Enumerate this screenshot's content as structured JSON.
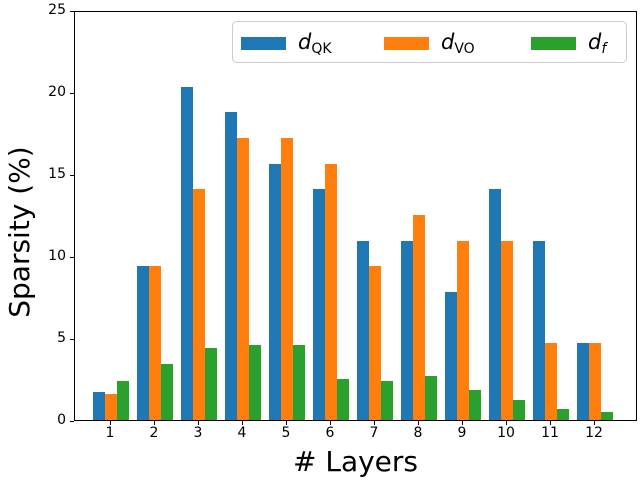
{
  "chart_data": {
    "type": "bar",
    "title": "",
    "xlabel": "# Layers",
    "ylabel": "Sparsity (%)",
    "categories": [
      "1",
      "2",
      "3",
      "4",
      "5",
      "6",
      "7",
      "8",
      "9",
      "10",
      "11",
      "12"
    ],
    "series": [
      {
        "name": "d_QK",
        "label_main": "d",
        "label_sub": "QK",
        "sub_italic": false,
        "color": "#1f77b4",
        "values": [
          1.7,
          9.4,
          20.3,
          18.8,
          15.6,
          14.1,
          10.9,
          10.9,
          7.8,
          14.1,
          10.9,
          4.7
        ]
      },
      {
        "name": "d_VO",
        "label_main": "d",
        "label_sub": "VO",
        "sub_italic": false,
        "color": "#ff7f0e",
        "values": [
          1.6,
          9.4,
          14.1,
          17.2,
          17.2,
          15.6,
          9.4,
          12.5,
          10.9,
          10.9,
          4.7,
          4.7
        ]
      },
      {
        "name": "d_f",
        "label_main": "d",
        "label_sub": "f",
        "sub_italic": true,
        "color": "#2ca02c",
        "values": [
          2.4,
          3.4,
          4.4,
          4.6,
          4.6,
          2.5,
          2.4,
          2.7,
          1.8,
          1.2,
          0.7,
          0.5
        ]
      }
    ],
    "ylim": [
      0,
      25
    ],
    "yticks": [
      0,
      5,
      10,
      15,
      20,
      25
    ],
    "grid": false,
    "legend_position": "upper right",
    "background": "#ffffff",
    "axis_color": "#000000"
  }
}
